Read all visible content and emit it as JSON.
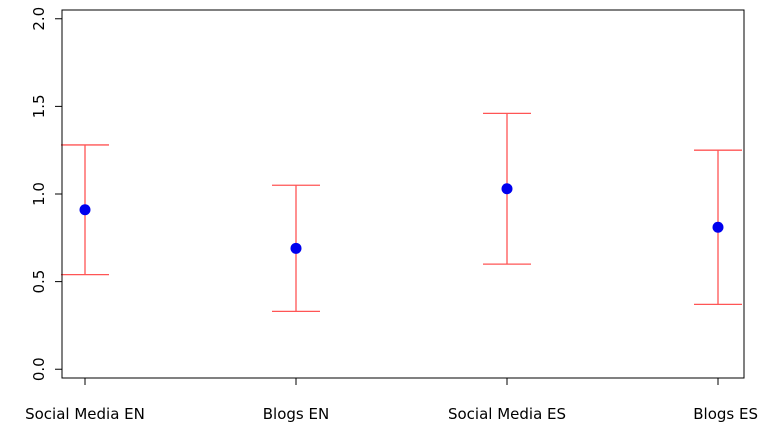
{
  "chart_data": {
    "type": "scatter",
    "title": "",
    "xlabel": "",
    "ylabel": "",
    "categories": [
      "Social Media EN",
      "Blogs EN",
      "Social Media ES",
      "Blogs ES"
    ],
    "points": [
      0.91,
      0.69,
      1.03,
      0.81
    ],
    "error_upper": [
      1.28,
      1.05,
      1.46,
      1.25
    ],
    "error_lower": [
      0.54,
      0.33,
      0.6,
      0.37
    ],
    "ylim": [
      -0.05,
      2.05
    ],
    "yticks": [
      0.0,
      0.5,
      1.0,
      1.5,
      2.0
    ],
    "ytick_labels": [
      "0.0",
      "0.5",
      "1.0",
      "1.5",
      "2.0"
    ],
    "grid": false,
    "legend": "none",
    "point_color": "#0000ee",
    "error_bar_color": "#ff5555"
  }
}
